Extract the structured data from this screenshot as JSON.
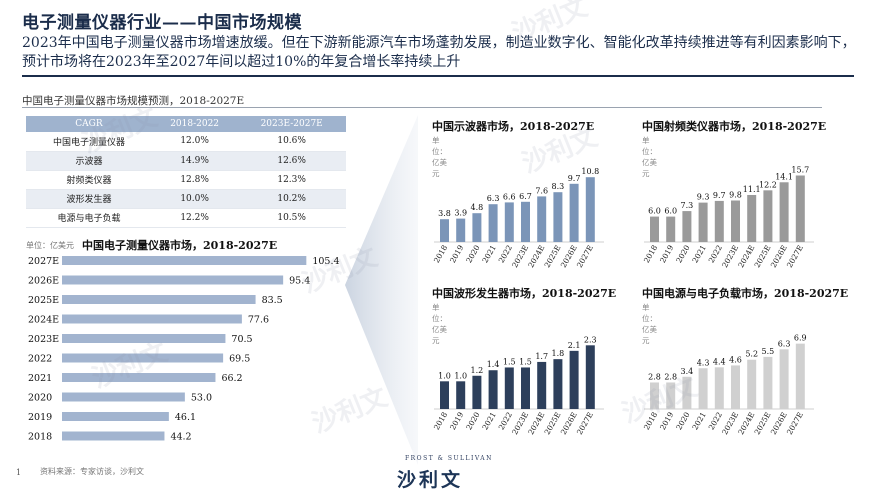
{
  "header": {
    "title": "电子测量仪器行业——中国市场规模",
    "subtitle": "2023年中国电子测量仪器市场增速放缓。但在下游新能源汽车市场蓬勃发展，制造业数字化、智能化改革持续推进等有利因素影响下，预计市场将在2023年至2027年间以超过10%的年复合增长率持续上升"
  },
  "section_label": "中国电子测量仪器市场规模预测，2018-2027E",
  "cagr_table": {
    "headers": [
      "CAGR",
      "2018-2022",
      "2023E-2027E"
    ],
    "rows": [
      [
        "中国电子测量仪器",
        "12.0%",
        "10.6%"
      ],
      [
        "示波器",
        "14.9%",
        "12.6%"
      ],
      [
        "射频类仪器",
        "12.8%",
        "12.3%"
      ],
      [
        "波形发生器",
        "10.0%",
        "10.2%"
      ],
      [
        "电源与电子负载",
        "12.2%",
        "10.5%"
      ]
    ]
  },
  "unit_label": "单位：亿美元",
  "colors": {
    "main": "#a2b4cf",
    "oscilloscope": "#7b95b8",
    "rf": "#9a9a9a",
    "waveform": "#2d3f5b",
    "power": "#d0d0d0"
  },
  "chart_data": [
    {
      "type": "bar",
      "orientation": "horizontal",
      "title": "中国电子测量仪器市场，2018-2027E",
      "unit": "单位：亿美元",
      "categories": [
        "2027E",
        "2026E",
        "2025E",
        "2024E",
        "2023E",
        "2022",
        "2021",
        "2020",
        "2019",
        "2018"
      ],
      "values": [
        105.4,
        95.4,
        83.5,
        77.6,
        70.5,
        69.5,
        66.2,
        53.0,
        46.1,
        44.2
      ]
    },
    {
      "type": "bar",
      "title": "中国示波器市场，2018-2027E",
      "unit": "单位：亿美元",
      "categories": [
        "2018",
        "2019",
        "2020",
        "2021",
        "2022",
        "2023E",
        "2024E",
        "2025E",
        "2026E",
        "2027E"
      ],
      "values": [
        3.8,
        3.9,
        4.8,
        6.3,
        6.6,
        6.7,
        7.6,
        8.3,
        9.7,
        10.8
      ]
    },
    {
      "type": "bar",
      "title": "中国射频类仪器市场，2018-2027E",
      "unit": "单位：亿美元",
      "categories": [
        "2018",
        "2019",
        "2020",
        "2021",
        "2022",
        "2023E",
        "2024E",
        "2025E",
        "2026E",
        "2027E"
      ],
      "values": [
        6.0,
        6.0,
        7.3,
        9.3,
        9.7,
        9.8,
        11.1,
        12.2,
        14.1,
        15.7
      ]
    },
    {
      "type": "bar",
      "title": "中国波形发生器市场，2018-2027E",
      "unit": "单位：亿美元",
      "categories": [
        "2018",
        "2019",
        "2020",
        "2021",
        "2022",
        "2023E",
        "2024E",
        "2025E",
        "2026E",
        "2027E"
      ],
      "values": [
        1.0,
        1.0,
        1.2,
        1.4,
        1.5,
        1.5,
        1.7,
        1.8,
        2.1,
        2.3
      ]
    },
    {
      "type": "bar",
      "title": "中国电源与电子负载市场，2018-2027E",
      "unit": "单位：亿美元",
      "categories": [
        "2018",
        "2019",
        "2020",
        "2021",
        "2022",
        "2023E",
        "2024E",
        "2025E",
        "2026E",
        "2027E"
      ],
      "values": [
        2.8,
        2.8,
        3.4,
        4.3,
        4.4,
        4.6,
        5.2,
        5.5,
        6.3,
        6.9
      ]
    }
  ],
  "footer": {
    "page_number": "1",
    "source": "资料来源：专家访谈，沙利文",
    "logo_top": "FROST & SULLIVAN",
    "logo": "沙利文"
  },
  "watermark": "沙利文"
}
